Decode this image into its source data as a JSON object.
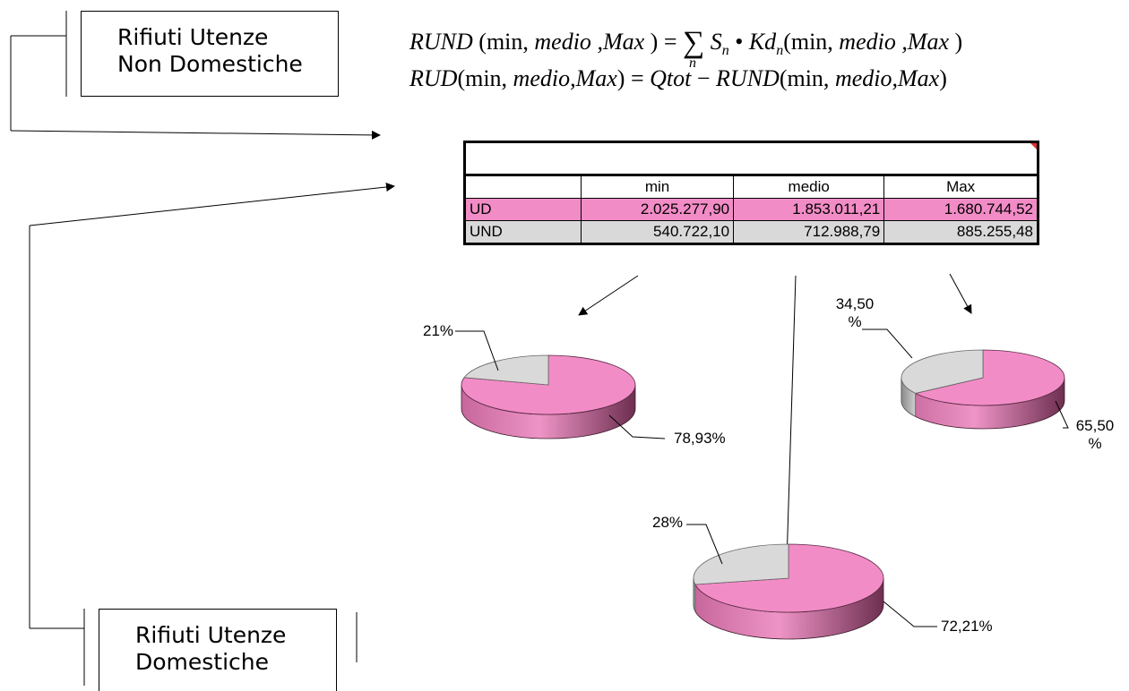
{
  "boxes": {
    "non_domestic": {
      "line1": "Rifiuti Utenze",
      "line2": "Non Domestiche"
    },
    "domestic": {
      "line1": "Rifiuti Utenze",
      "line2": "Domestiche"
    }
  },
  "formulas": {
    "f1": {
      "lhs": "RUND",
      "args_open": "(min,",
      "arg_medio": "medio",
      "arg_max": ",Max",
      "args_close": ")",
      "equals": "=",
      "sigma": "∑",
      "sigma_index": "n",
      "term_s": "S",
      "term_s_sub": "n",
      "dot": "•",
      "term_kd": "Kd",
      "term_kd_sub": "n",
      "rhs_args_open": "(min,",
      "rhs_arg_medio": "medio",
      "rhs_arg_max": ",Max",
      "rhs_args_close": ")"
    },
    "f2": {
      "lhs": "RUD",
      "args_open": "(min,",
      "arg_medio": "medio",
      "arg_max": ",Max",
      "args_close": ")",
      "equals": "=",
      "qtot": "Qtot",
      "minus": "−",
      "rund": "RUND",
      "rhs_args_open": "(min,",
      "rhs_arg_medio": "medio",
      "rhs_arg_max": ",Max",
      "rhs_args_close": ")"
    }
  },
  "table": {
    "columns": [
      "",
      "min",
      "medio",
      "Max"
    ],
    "rows": [
      {
        "label": "UD",
        "values": [
          "2.025.277,90",
          "1.853.011,21",
          "1.680.744,52"
        ]
      },
      {
        "label": "UND",
        "values": [
          "540.722,10",
          "712.988,79",
          "885.255,48"
        ]
      }
    ],
    "colors": {
      "ud": "#f28cc6",
      "und": "#d9d9d9"
    }
  },
  "chart_data": [
    {
      "type": "pie",
      "categories": [
        "UD",
        "UND"
      ],
      "values": [
        78.93,
        21
      ],
      "data_labels": [
        "78,93%",
        "21%"
      ],
      "colors": [
        "#f28cc6",
        "#d9d9d9"
      ]
    },
    {
      "type": "pie",
      "categories": [
        "UD",
        "UND"
      ],
      "values": [
        72.21,
        28
      ],
      "data_labels": [
        "72,21%",
        "28%"
      ],
      "colors": [
        "#f28cc6",
        "#d9d9d9"
      ]
    },
    {
      "type": "pie",
      "categories": [
        "UD",
        "UND"
      ],
      "values": [
        65.5,
        34.5
      ],
      "data_labels": [
        "65,50 %",
        "34,50 %"
      ],
      "data_labels_lines": [
        [
          "65,50",
          "%"
        ],
        [
          "34,50",
          "%"
        ]
      ],
      "colors": [
        "#f28cc6",
        "#d9d9d9"
      ]
    }
  ]
}
